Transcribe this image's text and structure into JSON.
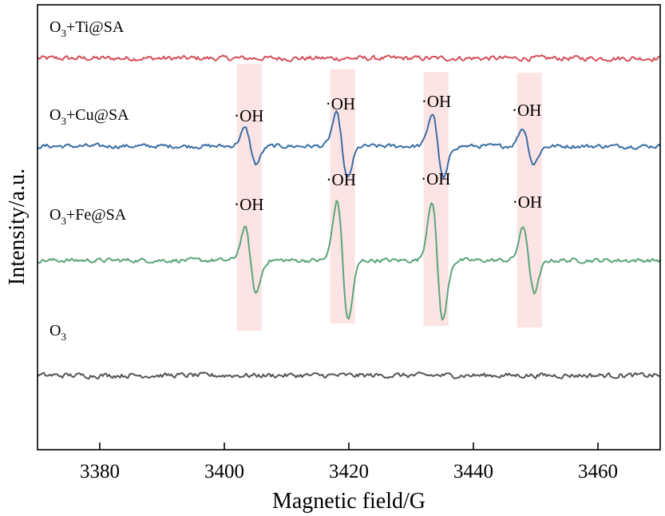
{
  "chart_data": {
    "type": "line",
    "xlabel": "Magnetic field/G",
    "ylabel": "Intensity/a.u.",
    "xlim": [
      3370,
      3470
    ],
    "xticks": [
      3380,
      3400,
      3420,
      3440,
      3460
    ],
    "y_ticks_shown": false,
    "grid": false,
    "legend": "none (inline labels above each trace)",
    "highlight_color": "#fde4e4",
    "highlight_bands": [
      [
        3402,
        3406
      ],
      [
        3417,
        3421
      ],
      [
        3432,
        3436
      ],
      [
        3447,
        3451
      ]
    ],
    "series": [
      {
        "name_main": "O",
        "name_sub": "3",
        "name_rest": "+Ti@SA",
        "color": "#d4505a",
        "offset": 3,
        "amplitude": 0,
        "noise": 0.035,
        "peaks": [],
        "peak_label": ""
      },
      {
        "name_main": "O",
        "name_sub": "3",
        "name_rest": "+Cu@SA",
        "color": "#3a6ea5",
        "offset": 2,
        "amplitude": 0.3,
        "noise": 0.03,
        "peaks": [
          3404.2,
          3418.9,
          3434.3,
          3448.8
        ],
        "peak_weights": [
          0.55,
          1.0,
          1.0,
          0.55
        ],
        "peak_label": "·OH"
      },
      {
        "name_main": "O",
        "name_sub": "3",
        "name_rest": "+Fe@SA",
        "color": "#5aa57a",
        "offset": 1,
        "amplitude": 0.55,
        "noise": 0.03,
        "peaks": [
          3404.2,
          3419.0,
          3434.2,
          3448.9
        ],
        "peak_weights": [
          0.55,
          1.0,
          1.0,
          0.55
        ],
        "peak_label": "·OH"
      },
      {
        "name_main": "O",
        "name_sub": "3",
        "name_rest": "",
        "color": "#555555",
        "offset": 0,
        "amplitude": 0,
        "noise": 0.035,
        "peaks": [],
        "peak_label": ""
      }
    ]
  }
}
